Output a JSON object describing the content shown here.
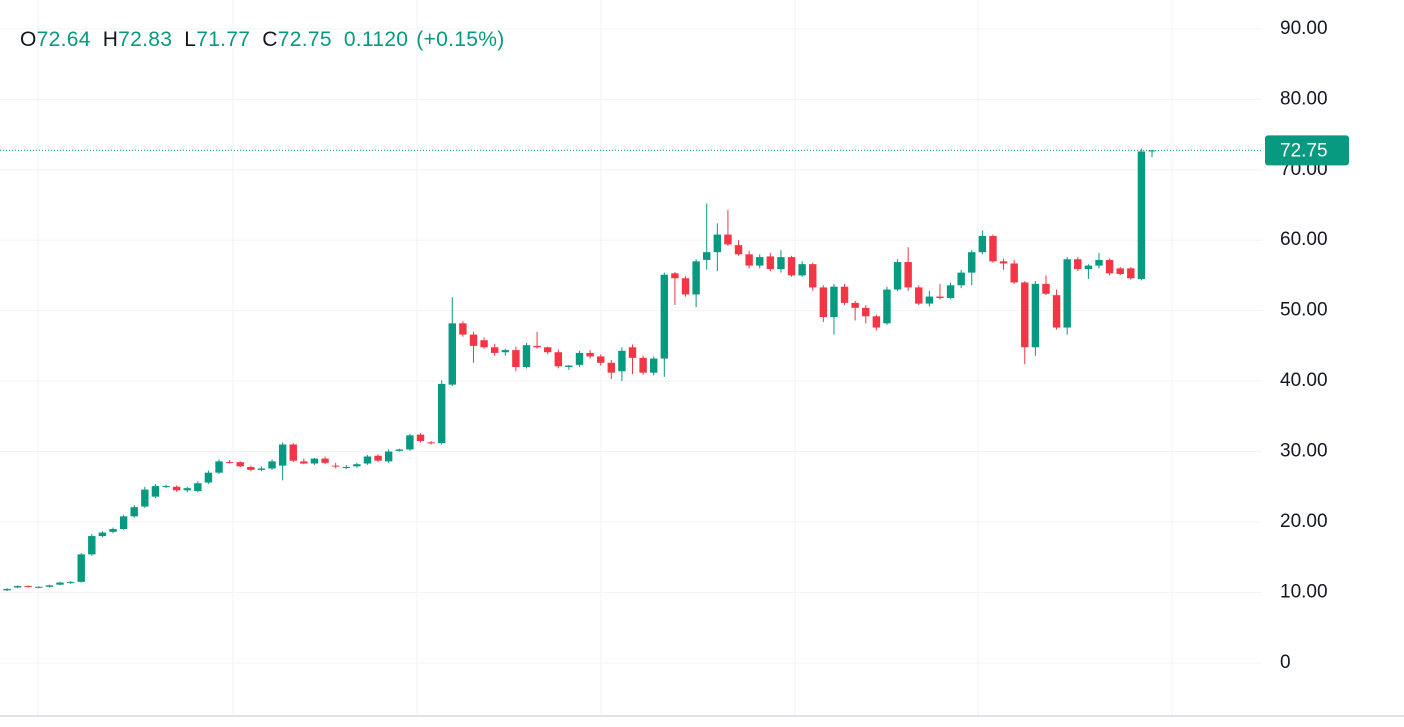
{
  "header": {
    "open_label": "O",
    "open": "72.64",
    "high_label": "H",
    "high": "72.83",
    "low_label": "L",
    "low": "71.77",
    "close_label": "C",
    "close": "72.75",
    "change": "0.1120",
    "change_pct": "(+0.15%)"
  },
  "chart_data": {
    "type": "candlestick",
    "up_color": "#089981",
    "down_color": "#f23645",
    "ylim": [
      -7.4,
      94.1
    ],
    "yticks": [
      0,
      {
        "value": 10,
        "label": "10.00"
      },
      {
        "value": 20,
        "label": "20.00"
      },
      {
        "value": 30,
        "label": "30.00"
      },
      {
        "value": 40,
        "label": "40.00"
      },
      {
        "value": 50,
        "label": "50.00"
      },
      {
        "value": 60,
        "label": "60.00"
      },
      {
        "value": 70,
        "label": "70.00"
      },
      {
        "value": 80,
        "label": "80.00"
      },
      {
        "value": 90,
        "label": "90.00"
      }
    ],
    "grid": true,
    "last_price": 72.75,
    "open": [
      10.3,
      10.7,
      10.9,
      10.7,
      10.8,
      11.1,
      11.4,
      11.5,
      15.4,
      18.0,
      18.6,
      19.0,
      20.8,
      22.2,
      23.6,
      25.0,
      25.0,
      24.5,
      24.4,
      25.6,
      27.0,
      28.5,
      28.5,
      27.8,
      27.4,
      27.6,
      28.0,
      31.0,
      28.6,
      28.3,
      29.0,
      28.0,
      27.8,
      27.9,
      28.3,
      29.4,
      28.6,
      30.1,
      30.3,
      32.4,
      31.3,
      31.2,
      39.5,
      48.2,
      46.6,
      45.8,
      44.8,
      44.1,
      44.4,
      42.0,
      45.0,
      44.8,
      44.1,
      42.0,
      42.3,
      44.0,
      43.5,
      42.6,
      41.4,
      44.8,
      43.3,
      41.2,
      43.2,
      55.3,
      54.6,
      52.3,
      57.2,
      58.3,
      60.8,
      59.3,
      58.0,
      56.4,
      57.7,
      55.9,
      57.6,
      55.0,
      56.6,
      53.3,
      49.1,
      53.4,
      51.1,
      50.4,
      49.2,
      48.2,
      53.0,
      56.9,
      53.3,
      51.0,
      52.0,
      51.8,
      53.6,
      55.4,
      58.3,
      60.6,
      57.0,
      56.7,
      54.0,
      44.8,
      53.8,
      52.2,
      47.6,
      57.3,
      55.9,
      56.4,
      57.2,
      56.0,
      56.0,
      54.5,
      72.64
    ],
    "high": [
      10.6,
      11.0,
      11.0,
      10.9,
      11.1,
      11.5,
      11.6,
      15.6,
      18.3,
      18.7,
      19.2,
      21.0,
      22.4,
      25.0,
      25.4,
      25.3,
      25.2,
      25.0,
      25.8,
      27.3,
      28.9,
      28.8,
      28.6,
      28.0,
      27.9,
      28.9,
      31.3,
      31.2,
      29.0,
      29.1,
      29.3,
      28.4,
      28.1,
      28.4,
      29.5,
      29.6,
      30.3,
      30.4,
      32.5,
      32.6,
      31.5,
      40.1,
      51.9,
      48.5,
      47.0,
      46.2,
      45.3,
      44.6,
      44.9,
      45.4,
      47.0,
      44.9,
      44.5,
      42.3,
      44.3,
      44.4,
      43.8,
      43.0,
      44.8,
      45.2,
      43.6,
      43.5,
      55.4,
      55.5,
      54.9,
      57.3,
      65.2,
      62.4,
      64.3,
      60.0,
      58.5,
      58.0,
      58.2,
      58.6,
      57.8,
      57.0,
      56.8,
      53.6,
      53.8,
      53.8,
      51.4,
      50.8,
      49.4,
      53.4,
      57.3,
      59.0,
      53.6,
      52.8,
      53.8,
      54.0,
      55.8,
      58.6,
      61.4,
      60.8,
      57.4,
      57.2,
      54.2,
      54.2,
      55.0,
      53.0,
      57.6,
      57.6,
      56.6,
      58.2,
      57.4,
      56.2,
      56.2,
      73.0,
      72.83
    ],
    "low": [
      10.2,
      10.6,
      10.7,
      10.6,
      10.7,
      11.0,
      11.2,
      11.4,
      15.2,
      17.8,
      18.4,
      18.9,
      20.6,
      22.0,
      23.4,
      24.8,
      24.3,
      24.2,
      24.2,
      25.4,
      26.8,
      28.3,
      27.8,
      27.2,
      27.2,
      27.4,
      25.9,
      28.5,
      28.2,
      28.1,
      28.2,
      27.6,
      27.5,
      27.7,
      28.1,
      28.5,
      28.4,
      30.0,
      30.1,
      31.3,
      31.0,
      31.0,
      39.3,
      46.3,
      42.6,
      44.6,
      43.6,
      43.6,
      41.4,
      41.8,
      44.6,
      43.8,
      41.8,
      41.6,
      42.0,
      43.2,
      42.2,
      40.3,
      40.0,
      41.0,
      40.9,
      40.8,
      40.6,
      50.8,
      52.0,
      50.5,
      55.8,
      55.6,
      59.2,
      57.8,
      56.0,
      56.0,
      55.6,
      55.4,
      54.8,
      54.8,
      52.8,
      48.4,
      46.6,
      50.8,
      48.6,
      48.2,
      47.2,
      48.0,
      52.8,
      52.8,
      50.8,
      50.6,
      51.6,
      51.6,
      53.2,
      53.6,
      58.0,
      56.8,
      55.8,
      53.8,
      42.4,
      43.6,
      52.2,
      47.3,
      46.6,
      55.6,
      54.5,
      56.0,
      55.0,
      55.0,
      54.4,
      54.3,
      71.77
    ],
    "close": [
      10.5,
      10.9,
      10.8,
      10.8,
      11.0,
      11.4,
      11.5,
      15.4,
      18.0,
      18.5,
      19.0,
      20.8,
      22.1,
      24.6,
      25.1,
      25.1,
      24.5,
      24.8,
      25.5,
      27.0,
      28.6,
      28.4,
      27.9,
      27.4,
      27.6,
      28.6,
      31.0,
      28.7,
      28.3,
      29.0,
      28.4,
      27.9,
      27.8,
      28.2,
      29.3,
      28.7,
      30.0,
      30.3,
      32.3,
      31.5,
      31.2,
      39.6,
      48.2,
      46.6,
      45.0,
      44.8,
      44.0,
      44.4,
      42.0,
      45.1,
      44.8,
      44.1,
      42.1,
      42.2,
      44.0,
      43.5,
      42.6,
      41.2,
      44.3,
      43.3,
      41.2,
      43.2,
      55.1,
      54.6,
      52.3,
      57.0,
      58.3,
      60.8,
      59.4,
      58.0,
      56.4,
      57.6,
      55.9,
      57.6,
      55.0,
      56.6,
      53.3,
      49.1,
      53.4,
      51.1,
      50.4,
      49.2,
      47.6,
      53.0,
      56.9,
      53.3,
      51.0,
      52.0,
      51.8,
      53.6,
      55.4,
      58.3,
      60.6,
      57.0,
      56.7,
      54.0,
      44.8,
      53.8,
      52.4,
      47.6,
      57.3,
      55.9,
      56.4,
      57.2,
      55.3,
      55.2,
      54.6,
      72.6,
      72.75
    ]
  }
}
